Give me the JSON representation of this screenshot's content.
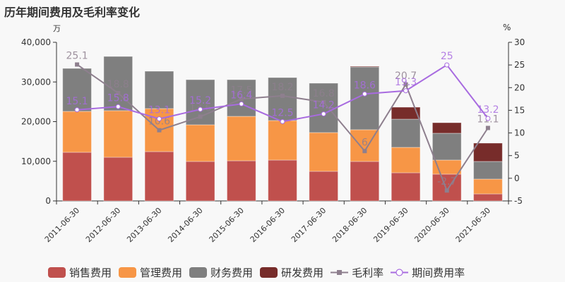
{
  "title": "历年期间费用及毛利率变化",
  "left_unit": "万",
  "right_unit": "%",
  "colors": {
    "sales": "#c0504d",
    "admin": "#f79646",
    "finance": "#7f7f7f",
    "rd": "#772c2a",
    "gross_margin": "#8e7f8e",
    "period_rate": "#a86be0"
  },
  "legend": [
    {
      "label": "销售费用",
      "type": "bar",
      "color": "#c0504d"
    },
    {
      "label": "管理费用",
      "type": "bar",
      "color": "#f79646"
    },
    {
      "label": "财务费用",
      "type": "bar",
      "color": "#7f7f7f"
    },
    {
      "label": "研发费用",
      "type": "bar",
      "color": "#772c2a"
    },
    {
      "label": "毛利率",
      "type": "line",
      "color": "#8e7f8e"
    },
    {
      "label": "期间费用率",
      "type": "line",
      "color": "#a86be0"
    }
  ],
  "chart_data": {
    "type": "bar",
    "title": "历年期间费用及毛利率变化",
    "categories": [
      "2011-06-30",
      "2012-06-30",
      "2013-06-30",
      "2014-06-30",
      "2015-06-30",
      "2016-06-30",
      "2017-06-30",
      "2018-06-30",
      "2019-06-30",
      "2020-06-30",
      "2021-06-30"
    ],
    "ylabel": "万",
    "y2label": "%",
    "ylim": [
      0,
      40000
    ],
    "y2lim": [
      -5,
      30
    ],
    "yticks": [
      "0",
      "10,000",
      "20,000",
      "30,000",
      "40,000"
    ],
    "y2ticks": [
      "-5",
      "0",
      "5",
      "10",
      "15",
      "20",
      "25",
      "30"
    ],
    "stacked": true,
    "series": [
      {
        "name": "销售费用",
        "axis": "left",
        "type": "bar",
        "values": [
          12270,
          11020,
          12440,
          9960,
          10130,
          10310,
          7470,
          9960,
          7110,
          6760,
          1780
        ]
      },
      {
        "name": "管理费用",
        "axis": "left",
        "type": "bar",
        "values": [
          10310,
          11740,
          10850,
          9240,
          11200,
          9960,
          9770,
          8000,
          6400,
          3550,
          3730
        ]
      },
      {
        "name": "财务费用",
        "axis": "left",
        "type": "bar",
        "values": [
          10840,
          13680,
          9420,
          11380,
          9250,
          10840,
          12450,
          15820,
          7110,
          6760,
          4450
        ]
      },
      {
        "name": "研发费用",
        "axis": "left",
        "type": "bar",
        "values": [
          0,
          0,
          0,
          0,
          0,
          0,
          0,
          180,
          3020,
          2660,
          4620
        ]
      },
      {
        "name": "毛利率",
        "axis": "right",
        "type": "line",
        "values": [
          25.1,
          18.8,
          10.6,
          13.6,
          17.5,
          18.2,
          16.8,
          6,
          20.7,
          -2.7,
          11.1
        ]
      },
      {
        "name": "期间费用率",
        "axis": "right",
        "type": "line",
        "values": [
          15.1,
          15.8,
          13.1,
          15.2,
          16.4,
          12.5,
          14.2,
          18.6,
          19.3,
          25,
          13.2
        ]
      }
    ],
    "legend_position": "bottom",
    "grid": false
  }
}
